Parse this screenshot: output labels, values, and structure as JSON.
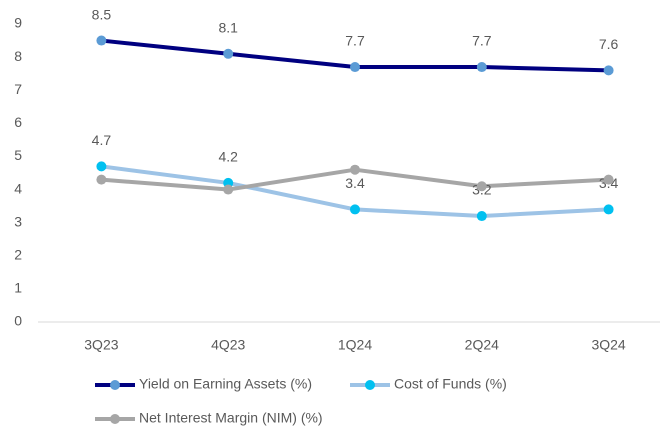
{
  "chart_data": {
    "type": "line",
    "categories": [
      "3Q23",
      "4Q23",
      "1Q24",
      "2Q24",
      "3Q24"
    ],
    "series": [
      {
        "name": "Yield on Earning Assets (%)",
        "color": "#000080",
        "marker_color": "#5b9bd5",
        "values": [
          8.5,
          8.1,
          7.7,
          7.7,
          7.6
        ],
        "data_labels": true
      },
      {
        "name": "Cost of Funds (%)",
        "color": "#9dc3e6",
        "marker_color": "#00c0f0",
        "values": [
          4.7,
          4.2,
          3.4,
          3.2,
          3.4
        ],
        "data_labels": true
      },
      {
        "name": "Net Interest Margin (NIM) (%)",
        "color": "#a6a6a6",
        "marker_color": "#a6a6a6",
        "values": [
          4.3,
          4.0,
          4.6,
          4.1,
          4.3
        ],
        "data_labels": false
      }
    ],
    "ylim": [
      0,
      9
    ],
    "yticks": [
      0,
      1,
      2,
      3,
      4,
      5,
      6,
      7,
      8,
      9
    ],
    "grid": false,
    "legend": "bottom"
  }
}
